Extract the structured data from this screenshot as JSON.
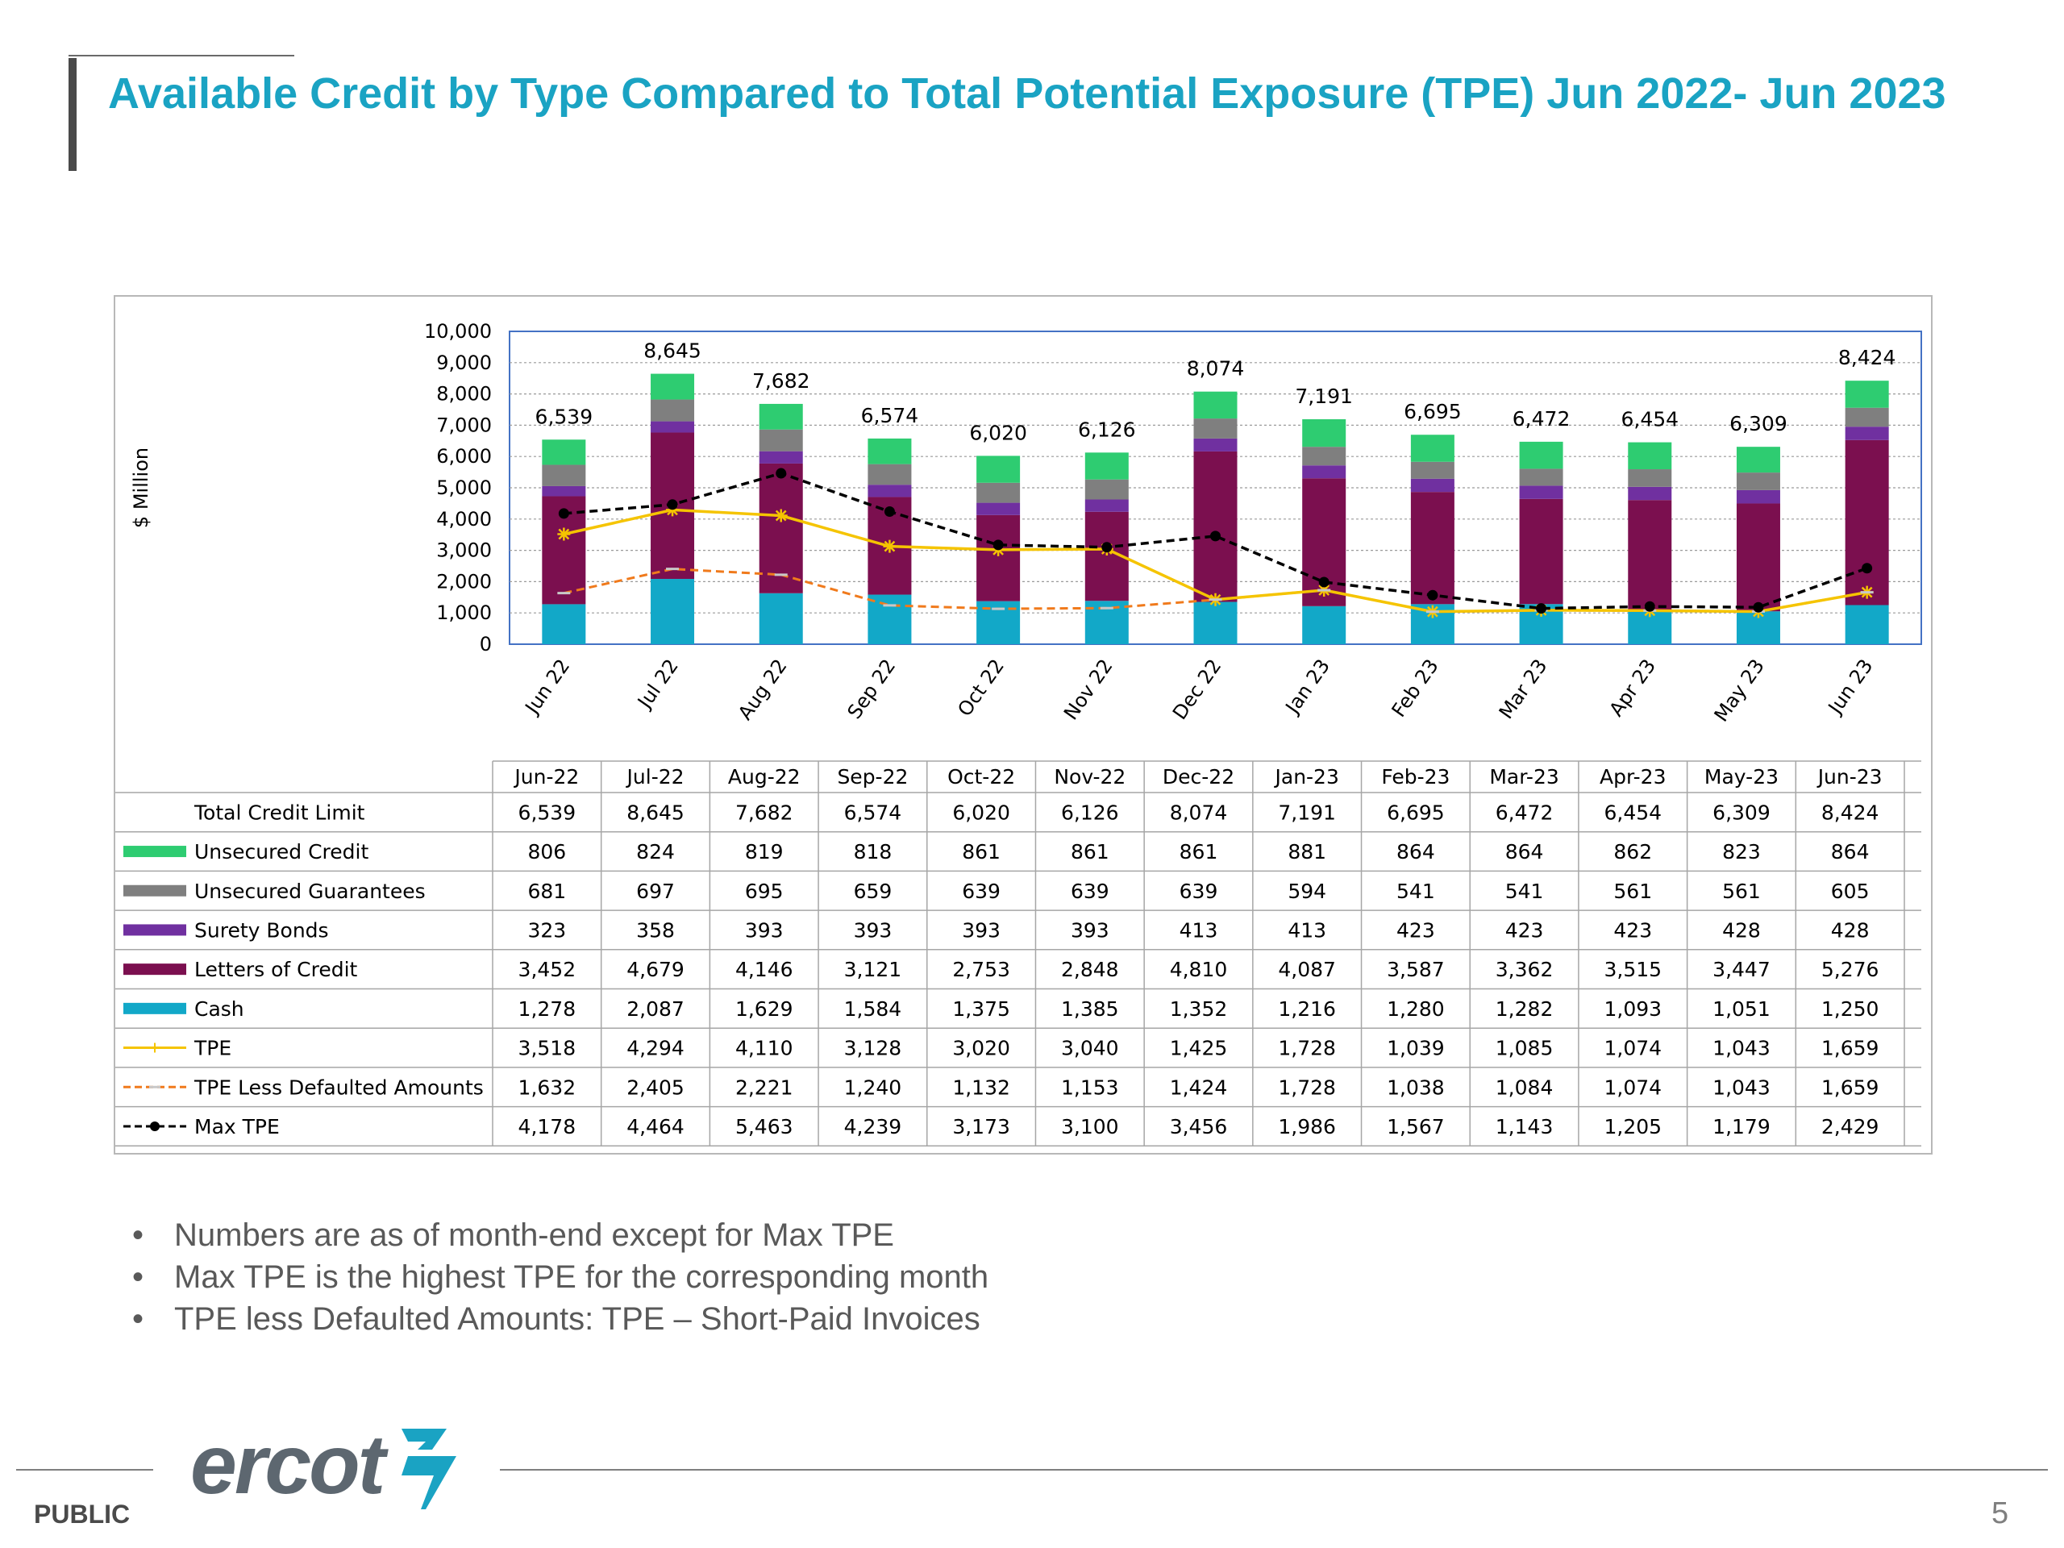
{
  "page": {
    "title": "Available Credit by Type Compared to Total Potential Exposure (TPE) Jun 2022- Jun 2023",
    "bullets": [
      "Numbers are as of month-end except for Max TPE",
      "Max TPE is the highest TPE for the corresponding month",
      "TPE less Defaulted Amounts: TPE – Short-Paid Invoices"
    ],
    "footer_label": "PUBLIC",
    "page_number": "5",
    "logo_text": "ercot"
  },
  "colors": {
    "title": "#1aa3c3",
    "unsecured_credit": "#2ecc71",
    "unsecured_guarantees": "#7f7f7f",
    "surety_bonds": "#7030a0",
    "letters_of_credit": "#7b0f4f",
    "cash": "#12a8c8",
    "tpe": "#f5c400",
    "tpe_less_defaulted": "#f07a1c",
    "max_tpe": "#000000",
    "logo_grey": "#5d6770",
    "logo_teal": "#1aa3c3"
  },
  "chart_data": {
    "type": "bar",
    "stacked": true,
    "title": "",
    "ylabel": "$ Million",
    "ylim": [
      0,
      10000
    ],
    "yticks": [
      "0",
      "1,000",
      "2,000",
      "3,000",
      "4,000",
      "5,000",
      "6,000",
      "7,000",
      "8,000",
      "9,000",
      "10,000"
    ],
    "grid": true,
    "categories": [
      "Jun 22",
      "Jul 22",
      "Aug 22",
      "Sep 22",
      "Oct 22",
      "Nov 22",
      "Dec 22",
      "Jan 23",
      "Feb 23",
      "Mar 23",
      "Apr 23",
      "May 23",
      "Jun 23"
    ],
    "table_headers": [
      "Jun-22",
      "Jul-22",
      "Aug-22",
      "Sep-22",
      "Oct-22",
      "Nov-22",
      "Dec-22",
      "Jan-23",
      "Feb-23",
      "Mar-23",
      "Apr-23",
      "May-23",
      "Jun-23"
    ],
    "total": {
      "name": "Total Credit Limit",
      "values": [
        6539,
        8645,
        7682,
        6574,
        6020,
        6126,
        8074,
        7191,
        6695,
        6472,
        6454,
        6309,
        8424
      ],
      "labels": [
        "6,539",
        "8,645",
        "7,682",
        "6,574",
        "6,020",
        "6,126",
        "8,074",
        "7,191",
        "6,695",
        "6,472",
        "6,454",
        "6,309",
        "8,424"
      ]
    },
    "series": [
      {
        "key": "unsecured_credit",
        "name": "Unsecured Credit",
        "kind": "bar",
        "values": [
          806,
          824,
          819,
          818,
          861,
          861,
          861,
          881,
          864,
          864,
          862,
          823,
          864
        ],
        "labels": [
          "806",
          "824",
          "819",
          "818",
          "861",
          "861",
          "861",
          "881",
          "864",
          "864",
          "862",
          "823",
          "864"
        ]
      },
      {
        "key": "unsecured_guarantees",
        "name": "Unsecured Guarantees",
        "kind": "bar",
        "values": [
          681,
          697,
          695,
          659,
          639,
          639,
          639,
          594,
          541,
          541,
          561,
          561,
          605
        ],
        "labels": [
          "681",
          "697",
          "695",
          "659",
          "639",
          "639",
          "639",
          "594",
          "541",
          "541",
          "561",
          "561",
          "605"
        ]
      },
      {
        "key": "surety_bonds",
        "name": "Surety Bonds",
        "kind": "bar",
        "values": [
          323,
          358,
          393,
          393,
          393,
          393,
          413,
          413,
          423,
          423,
          423,
          428,
          428
        ],
        "labels": [
          "323",
          "358",
          "393",
          "393",
          "393",
          "393",
          "413",
          "413",
          "423",
          "423",
          "423",
          "428",
          "428"
        ]
      },
      {
        "key": "letters_of_credit",
        "name": "Letters of Credit",
        "kind": "bar",
        "values": [
          3452,
          4679,
          4146,
          3121,
          2753,
          2848,
          4810,
          4087,
          3587,
          3362,
          3515,
          3447,
          5276
        ],
        "labels": [
          "3,452",
          "4,679",
          "4,146",
          "3,121",
          "2,753",
          "2,848",
          "4,810",
          "4,087",
          "3,587",
          "3,362",
          "3,515",
          "3,447",
          "5,276"
        ]
      },
      {
        "key": "cash",
        "name": "Cash",
        "kind": "bar",
        "values": [
          1278,
          2087,
          1629,
          1584,
          1375,
          1385,
          1352,
          1216,
          1280,
          1282,
          1093,
          1051,
          1250
        ],
        "labels": [
          "1,278",
          "2,087",
          "1,629",
          "1,584",
          "1,375",
          "1,385",
          "1,352",
          "1,216",
          "1,280",
          "1,282",
          "1,093",
          "1,051",
          "1,250"
        ]
      },
      {
        "key": "tpe",
        "name": "TPE",
        "kind": "line",
        "values": [
          3518,
          4294,
          4110,
          3128,
          3020,
          3040,
          1425,
          1728,
          1039,
          1085,
          1074,
          1043,
          1659
        ],
        "labels": [
          "3,518",
          "4,294",
          "4,110",
          "3,128",
          "3,020",
          "3,040",
          "1,425",
          "1,728",
          "1,039",
          "1,085",
          "1,074",
          "1,043",
          "1,659"
        ]
      },
      {
        "key": "tpe_less_defaulted",
        "name": "TPE Less Defaulted Amounts",
        "kind": "dashed-line",
        "values": [
          1632,
          2405,
          2221,
          1240,
          1132,
          1153,
          1424,
          1728,
          1038,
          1084,
          1074,
          1043,
          1659
        ],
        "labels": [
          "1,632",
          "2,405",
          "2,221",
          "1,240",
          "1,132",
          "1,153",
          "1,424",
          "1,728",
          "1,038",
          "1,084",
          "1,074",
          "1,043",
          "1,659"
        ]
      },
      {
        "key": "max_tpe",
        "name": "Max TPE",
        "kind": "dashed-line-markers",
        "values": [
          4178,
          4464,
          5463,
          4239,
          3173,
          3100,
          3456,
          1986,
          1567,
          1143,
          1205,
          1179,
          2429
        ],
        "labels": [
          "4,178",
          "4,464",
          "5,463",
          "4,239",
          "3,173",
          "3,100",
          "3,456",
          "1,986",
          "1,567",
          "1,143",
          "1,205",
          "1,179",
          "2,429"
        ]
      }
    ],
    "stack_order": [
      "cash",
      "letters_of_credit",
      "surety_bonds",
      "unsecured_guarantees",
      "unsecured_credit"
    ]
  }
}
